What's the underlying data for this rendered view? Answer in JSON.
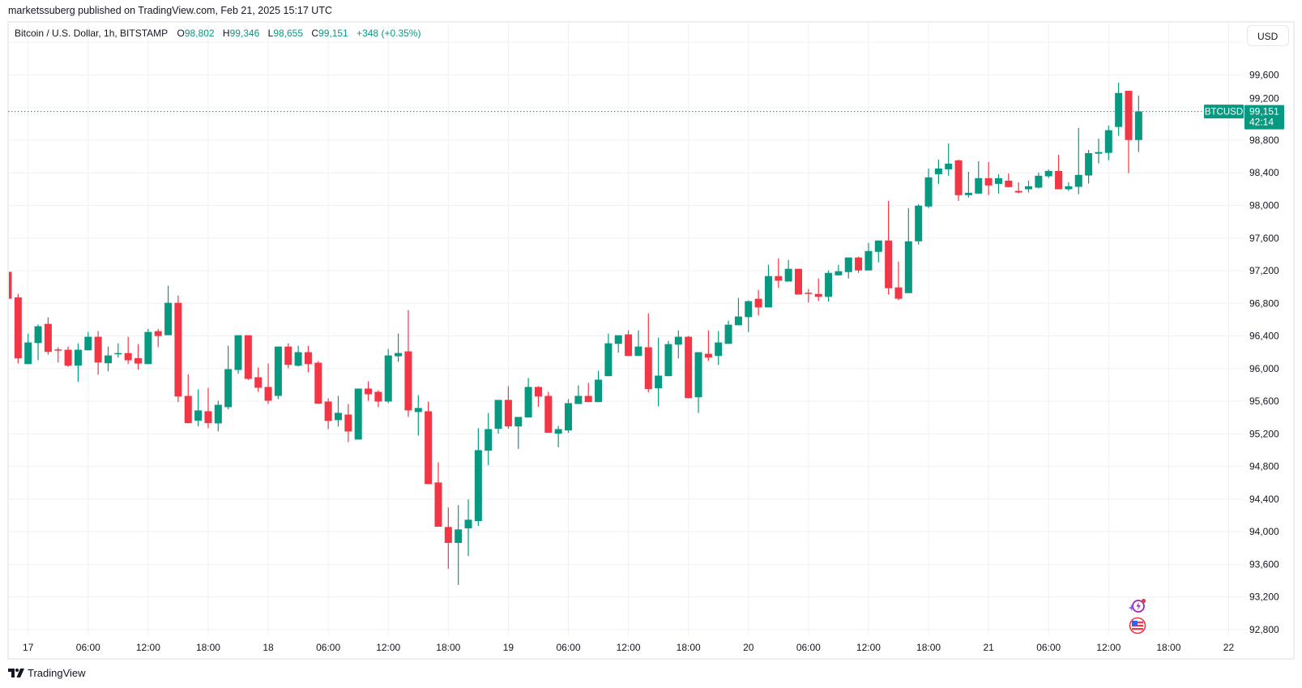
{
  "publish_line": "marketssuberg published on TradingView.com, Feb 21, 2025 15:17 UTC",
  "legend": {
    "title": "Bitcoin / U.S. Dollar, 1h, BITSTAMP",
    "open_key": "O",
    "open": "98,802",
    "high_key": "H",
    "high": "99,346",
    "low_key": "L",
    "low": "98,655",
    "close_key": "C",
    "close": "99,151",
    "change": "+348 (+0.35%)"
  },
  "currency_button": "USD",
  "branding": "TradingView",
  "icons": [
    "ai-lightning-icon",
    "us-flag-icon"
  ],
  "chart_data": {
    "type": "candlestick",
    "symbol": "BTCUSD",
    "interval": "1h",
    "colors": {
      "up": "#089981",
      "down": "#f23645",
      "grid": "#f0f1f4",
      "last_price": "#089981"
    },
    "grid": true,
    "ylim": [
      92720,
      100250
    ],
    "xlim": [
      "2025-02-16 22:00",
      "2025-02-22 01:30"
    ],
    "y_ticks": [
      {
        "value": 92800,
        "label": "92,800"
      },
      {
        "value": 93200,
        "label": "93,200"
      },
      {
        "value": 93600,
        "label": "93,600"
      },
      {
        "value": 94000,
        "label": "94,000"
      },
      {
        "value": 94400,
        "label": "94,400"
      },
      {
        "value": 94800,
        "label": "94,800"
      },
      {
        "value": 95200,
        "label": "95,200"
      },
      {
        "value": 95600,
        "label": "95,600"
      },
      {
        "value": 96000,
        "label": "96,000"
      },
      {
        "value": 96400,
        "label": "96,400"
      },
      {
        "value": 96800,
        "label": "96,800"
      },
      {
        "value": 97200,
        "label": "97,200"
      },
      {
        "value": 97600,
        "label": "97,600"
      },
      {
        "value": 98000,
        "label": "98,000"
      },
      {
        "value": 98400,
        "label": "98,400"
      },
      {
        "value": 98800,
        "label": "98,800"
      },
      {
        "value": 99200,
        "label": "99,200"
      },
      {
        "value": 99600,
        "label": "99,600"
      },
      {
        "value": 100000,
        "label": ""
      }
    ],
    "x_ticks": [
      {
        "t": "2025-02-17 00:00",
        "label": "17"
      },
      {
        "t": "2025-02-17 06:00",
        "label": "06:00"
      },
      {
        "t": "2025-02-17 12:00",
        "label": "12:00"
      },
      {
        "t": "2025-02-17 18:00",
        "label": "18:00"
      },
      {
        "t": "2025-02-18 00:00",
        "label": "18"
      },
      {
        "t": "2025-02-18 06:00",
        "label": "06:00"
      },
      {
        "t": "2025-02-18 12:00",
        "label": "12:00"
      },
      {
        "t": "2025-02-18 18:00",
        "label": "18:00"
      },
      {
        "t": "2025-02-19 00:00",
        "label": "19"
      },
      {
        "t": "2025-02-19 06:00",
        "label": "06:00"
      },
      {
        "t": "2025-02-19 12:00",
        "label": "12:00"
      },
      {
        "t": "2025-02-19 18:00",
        "label": "18:00"
      },
      {
        "t": "2025-02-20 00:00",
        "label": "20"
      },
      {
        "t": "2025-02-20 06:00",
        "label": "06:00"
      },
      {
        "t": "2025-02-20 12:00",
        "label": "12:00"
      },
      {
        "t": "2025-02-20 18:00",
        "label": "18:00"
      },
      {
        "t": "2025-02-21 00:00",
        "label": "21"
      },
      {
        "t": "2025-02-21 06:00",
        "label": "06:00"
      },
      {
        "t": "2025-02-21 12:00",
        "label": "12:00"
      },
      {
        "t": "2025-02-21 18:00",
        "label": "18:00"
      },
      {
        "t": "2025-02-22 00:00",
        "label": "22"
      }
    ],
    "last_price": {
      "value": 99151,
      "label": "99,151",
      "symbol_tag": "BTCUSD",
      "countdown": "42:14"
    },
    "candles_fields": [
      "time",
      "open",
      "high",
      "low",
      "close"
    ],
    "candles": [
      [
        "2025-02-16 22:00",
        97186,
        97186,
        96856,
        96856
      ],
      [
        "2025-02-16 23:00",
        96873,
        96915,
        96062,
        96125
      ],
      [
        "2025-02-17 00:00",
        96055,
        96429,
        96055,
        96320
      ],
      [
        "2025-02-17 01:00",
        96313,
        96541,
        96102,
        96519
      ],
      [
        "2025-02-17 02:00",
        96548,
        96628,
        96171,
        96204
      ],
      [
        "2025-02-17 03:00",
        96235,
        96261,
        96075,
        96222
      ],
      [
        "2025-02-17 04:00",
        96231,
        96270,
        96020,
        96036
      ],
      [
        "2025-02-17 05:00",
        96036,
        96310,
        95837,
        96231
      ],
      [
        "2025-02-17 06:00",
        96224,
        96449,
        96224,
        96390
      ],
      [
        "2025-02-17 07:00",
        96390,
        96459,
        95926,
        96075
      ],
      [
        "2025-02-17 08:00",
        96065,
        96271,
        95966,
        96161
      ],
      [
        "2025-02-17 09:00",
        96175,
        96310,
        96135,
        96190
      ],
      [
        "2025-02-17 10:00",
        96190,
        96390,
        96055,
        96102
      ],
      [
        "2025-02-17 11:00",
        96128,
        96300,
        95986,
        96062
      ],
      [
        "2025-02-17 12:00",
        96055,
        96486,
        96055,
        96449
      ],
      [
        "2025-02-17 13:00",
        96459,
        96486,
        96261,
        96399
      ],
      [
        "2025-02-17 14:00",
        96409,
        97015,
        96409,
        96806
      ],
      [
        "2025-02-17 15:00",
        96806,
        96895,
        95589,
        95658
      ],
      [
        "2025-02-17 16:00",
        95665,
        95930,
        95331,
        95331
      ],
      [
        "2025-02-17 17:00",
        95361,
        95745,
        95291,
        95487
      ],
      [
        "2025-02-17 18:00",
        95477,
        95765,
        95268,
        95331
      ],
      [
        "2025-02-17 19:00",
        95328,
        95606,
        95229,
        95556
      ],
      [
        "2025-02-17 20:00",
        95527,
        96280,
        95500,
        95993
      ],
      [
        "2025-02-17 21:00",
        95983,
        96409,
        95936,
        96409
      ],
      [
        "2025-02-17 22:00",
        96409,
        96409,
        95860,
        95874
      ],
      [
        "2025-02-17 23:00",
        95894,
        96013,
        95715,
        95765
      ],
      [
        "2025-02-18 00:00",
        95775,
        96062,
        95566,
        95606
      ],
      [
        "2025-02-18 01:00",
        95665,
        96270,
        95626,
        96270
      ],
      [
        "2025-02-18 02:00",
        96270,
        96310,
        96003,
        96045
      ],
      [
        "2025-02-18 03:00",
        96035,
        96280,
        96025,
        96201
      ],
      [
        "2025-02-18 04:00",
        96201,
        96280,
        95954,
        96055
      ],
      [
        "2025-02-18 05:00",
        96072,
        96092,
        95569,
        95569
      ],
      [
        "2025-02-18 06:00",
        95596,
        95635,
        95259,
        95358
      ],
      [
        "2025-02-18 07:00",
        95368,
        95665,
        95288,
        95457
      ],
      [
        "2025-02-18 08:00",
        95437,
        95566,
        95100,
        95229
      ],
      [
        "2025-02-18 09:00",
        95130,
        95755,
        95130,
        95755
      ],
      [
        "2025-02-18 10:00",
        95755,
        95844,
        95606,
        95685
      ],
      [
        "2025-02-18 11:00",
        95715,
        95735,
        95527,
        95596
      ],
      [
        "2025-02-18 12:00",
        95596,
        96241,
        95576,
        96161
      ],
      [
        "2025-02-18 13:00",
        96151,
        96429,
        96082,
        96191
      ],
      [
        "2025-02-18 14:00",
        96211,
        96717,
        95407,
        95487
      ],
      [
        "2025-02-18 15:00",
        95467,
        95675,
        95179,
        95517
      ],
      [
        "2025-02-18 16:00",
        95477,
        95596,
        94584,
        94584
      ],
      [
        "2025-02-18 17:00",
        94604,
        94852,
        94061,
        94061
      ],
      [
        "2025-02-18 18:00",
        94058,
        94297,
        93546,
        93863
      ],
      [
        "2025-02-18 19:00",
        93863,
        94326,
        93347,
        94028
      ],
      [
        "2025-02-18 20:00",
        94042,
        94396,
        93704,
        94147
      ],
      [
        "2025-02-18 21:00",
        94131,
        95268,
        94072,
        95000
      ],
      [
        "2025-02-18 22:00",
        94994,
        95457,
        94815,
        95258
      ],
      [
        "2025-02-18 23:00",
        95262,
        95616,
        95202,
        95616
      ],
      [
        "2025-02-19 00:00",
        95616,
        95784,
        95262,
        95291
      ],
      [
        "2025-02-19 01:00",
        95291,
        95407,
        95014,
        95407
      ],
      [
        "2025-02-19 02:00",
        95401,
        95884,
        95401,
        95775
      ],
      [
        "2025-02-19 03:00",
        95775,
        95784,
        95530,
        95658
      ],
      [
        "2025-02-19 04:00",
        95665,
        95715,
        95212,
        95212
      ],
      [
        "2025-02-19 05:00",
        95202,
        95298,
        95034,
        95258
      ],
      [
        "2025-02-19 06:00",
        95242,
        95626,
        95212,
        95576
      ],
      [
        "2025-02-19 07:00",
        95566,
        95795,
        95566,
        95665
      ],
      [
        "2025-02-19 08:00",
        95665,
        95825,
        95589,
        95589
      ],
      [
        "2025-02-19 09:00",
        95589,
        95973,
        95589,
        95864
      ],
      [
        "2025-02-19 10:00",
        95907,
        96429,
        95907,
        96310
      ],
      [
        "2025-02-19 11:00",
        96303,
        96409,
        96194,
        96409
      ],
      [
        "2025-02-19 12:00",
        96419,
        96469,
        96155,
        96155
      ],
      [
        "2025-02-19 13:00",
        96155,
        96469,
        96155,
        96270
      ],
      [
        "2025-02-19 14:00",
        96261,
        96677,
        95708,
        95748
      ],
      [
        "2025-02-19 15:00",
        95758,
        96380,
        95539,
        95914
      ],
      [
        "2025-02-19 16:00",
        95907,
        96340,
        95907,
        96300
      ],
      [
        "2025-02-19 17:00",
        96293,
        96469,
        96124,
        96390
      ],
      [
        "2025-02-19 18:00",
        96390,
        96400,
        95638,
        95638
      ],
      [
        "2025-02-19 19:00",
        95648,
        96201,
        95457,
        96201
      ],
      [
        "2025-02-19 20:00",
        96181,
        96469,
        96095,
        96135
      ],
      [
        "2025-02-19 21:00",
        96155,
        96459,
        96045,
        96320
      ],
      [
        "2025-02-19 22:00",
        96303,
        96588,
        96303,
        96538
      ],
      [
        "2025-02-19 23:00",
        96531,
        96866,
        96531,
        96638
      ],
      [
        "2025-02-20 00:00",
        96631,
        96836,
        96449,
        96826
      ],
      [
        "2025-02-20 01:00",
        96856,
        96965,
        96651,
        96750
      ],
      [
        "2025-02-20 02:00",
        96750,
        97272,
        96750,
        97134
      ],
      [
        "2025-02-20 03:00",
        97134,
        97352,
        96988,
        97077
      ],
      [
        "2025-02-20 04:00",
        97067,
        97332,
        97067,
        97223
      ],
      [
        "2025-02-20 05:00",
        97223,
        97223,
        96908,
        96908
      ],
      [
        "2025-02-20 06:00",
        96930,
        96975,
        96809,
        96920
      ],
      [
        "2025-02-20 07:00",
        96915,
        97104,
        96829,
        96879
      ],
      [
        "2025-02-20 08:00",
        96879,
        97203,
        96819,
        97173
      ],
      [
        "2025-02-20 09:00",
        97143,
        97272,
        97143,
        97193
      ],
      [
        "2025-02-20 10:00",
        97183,
        97362,
        97104,
        97362
      ],
      [
        "2025-02-20 11:00",
        97362,
        97372,
        97173,
        97203
      ],
      [
        "2025-02-20 12:00",
        97203,
        97540,
        97203,
        97441
      ],
      [
        "2025-02-20 13:00",
        97431,
        97570,
        97302,
        97570
      ],
      [
        "2025-02-20 14:00",
        97570,
        98056,
        96908,
        96985
      ],
      [
        "2025-02-20 15:00",
        96995,
        97312,
        96839,
        96856
      ],
      [
        "2025-02-20 16:00",
        96925,
        97967,
        96925,
        97560
      ],
      [
        "2025-02-20 17:00",
        97560,
        98016,
        97520,
        97997
      ],
      [
        "2025-02-20 18:00",
        97987,
        98453,
        97967,
        98344
      ],
      [
        "2025-02-20 19:00",
        98383,
        98562,
        98264,
        98453
      ],
      [
        "2025-02-20 20:00",
        98443,
        98760,
        98364,
        98512
      ],
      [
        "2025-02-20 21:00",
        98552,
        98562,
        98056,
        98126
      ],
      [
        "2025-02-20 22:00",
        98126,
        98413,
        98096,
        98155
      ],
      [
        "2025-02-20 23:00",
        98145,
        98542,
        98145,
        98334
      ],
      [
        "2025-02-21 00:00",
        98334,
        98532,
        98126,
        98245
      ],
      [
        "2025-02-21 01:00",
        98264,
        98383,
        98145,
        98334
      ],
      [
        "2025-02-21 02:00",
        98304,
        98393,
        98225,
        98225
      ],
      [
        "2025-02-21 03:00",
        98178,
        98284,
        98148,
        98158
      ],
      [
        "2025-02-21 04:00",
        98198,
        98304,
        98158,
        98235
      ],
      [
        "2025-02-21 05:00",
        98218,
        98403,
        98208,
        98364
      ],
      [
        "2025-02-21 06:00",
        98357,
        98443,
        98337,
        98423
      ],
      [
        "2025-02-21 07:00",
        98423,
        98622,
        98198,
        98198
      ],
      [
        "2025-02-21 08:00",
        98198,
        98284,
        98178,
        98235
      ],
      [
        "2025-02-21 09:00",
        98228,
        98949,
        98138,
        98374
      ],
      [
        "2025-02-21 10:00",
        98367,
        98681,
        98267,
        98641
      ],
      [
        "2025-02-21 11:00",
        98634,
        98820,
        98515,
        98654
      ],
      [
        "2025-02-21 12:00",
        98644,
        98979,
        98555,
        98922
      ],
      [
        "2025-02-21 13:00",
        98962,
        99504,
        98853,
        99378
      ],
      [
        "2025-02-21 14:00",
        99405,
        99405,
        98396,
        98802
      ],
      [
        "2025-02-21 15:00",
        98802,
        99346,
        98655,
        99151
      ]
    ]
  }
}
